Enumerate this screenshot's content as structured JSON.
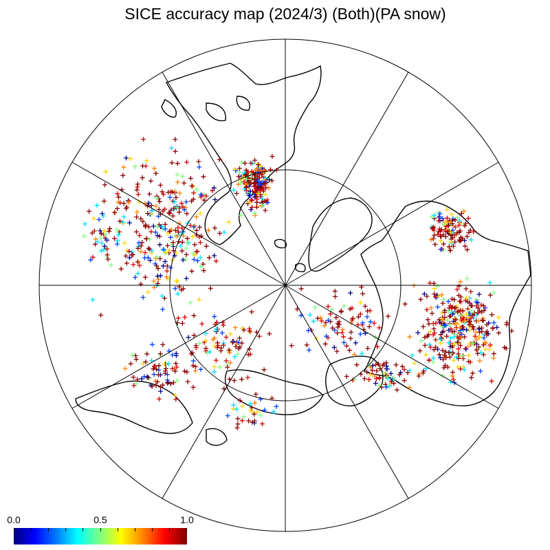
{
  "title": "SICE accuracy map (2024/3) (Both)(PA snow)",
  "map": {
    "projection": "north-polar-stereographic",
    "graticule_meridian_step_deg": 30,
    "graticule_parallels": [
      "inner circle",
      "outer boundary"
    ],
    "marker": "plus",
    "point_colors": {
      "high": "#8b0000",
      "red": "#d40000",
      "orange": "#ff8000",
      "yellow": "#ffd400",
      "green": "#80ff80",
      "cyan": "#00e0ff",
      "blue": "#0040ff",
      "navy": "#00008b"
    }
  },
  "colorbar": {
    "min_label": "0.0",
    "mid_label": "0.5",
    "max_label": "1.0",
    "colormap": "jet",
    "range": [
      0.0,
      1.0
    ]
  }
}
